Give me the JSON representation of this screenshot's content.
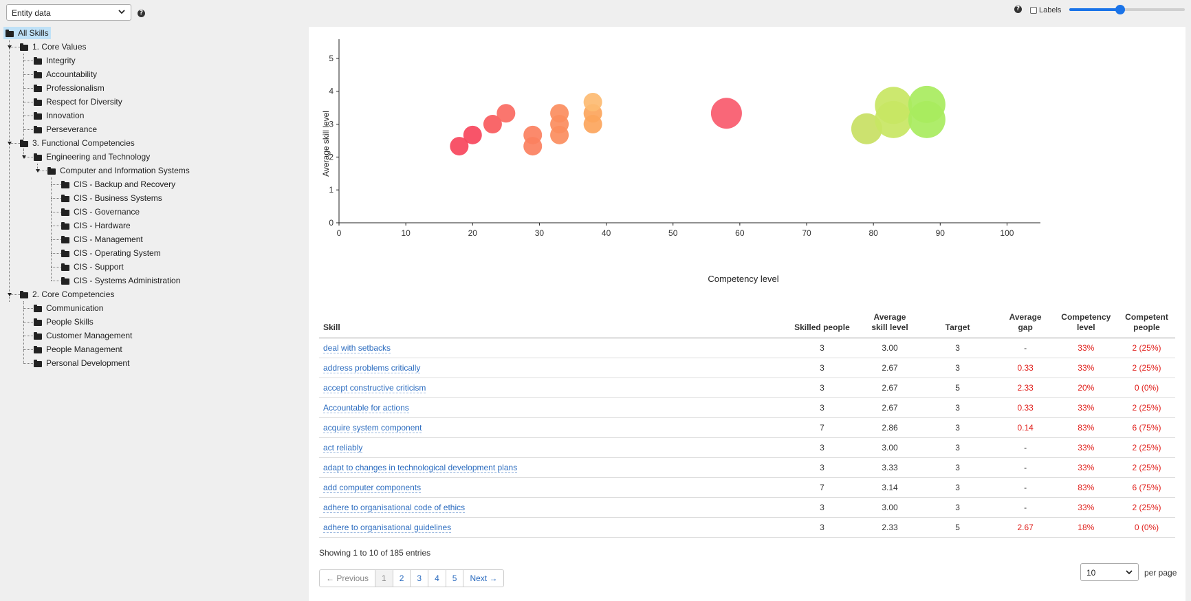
{
  "top": {
    "entity_select": "Entity data",
    "labels_toggle": "Labels",
    "slider_value_fraction": 0.44
  },
  "tree": {
    "root": "All Skills",
    "groups": [
      {
        "label": "1. Core Values",
        "items": [
          "Integrity",
          "Accountability",
          "Professionalism",
          "Respect for Diversity",
          "Innovation",
          "Perseverance"
        ]
      },
      {
        "label": "3. Functional Competencies",
        "sub": {
          "label": "Engineering and Technology",
          "sub": {
            "label": "Computer and Information Systems",
            "items": [
              "CIS - Backup and Recovery",
              "CIS - Business Systems",
              "CIS - Governance",
              "CIS - Hardware",
              "CIS - Management",
              "CIS - Operating System",
              "CIS - Support",
              "CIS - Systems Administration"
            ]
          }
        }
      },
      {
        "label": "2. Core Competencies",
        "items": [
          "Communication",
          "People Skills",
          "Customer Management",
          "People Management",
          "Personal Development"
        ]
      }
    ]
  },
  "chart_data": {
    "type": "scatter",
    "xlabel": "Competency level",
    "ylabel": "Average skill level",
    "xlim": [
      0,
      105
    ],
    "ylim": [
      0,
      5.5
    ],
    "xticks": [
      0,
      10,
      20,
      30,
      40,
      50,
      60,
      70,
      80,
      90,
      100
    ],
    "yticks": [
      0,
      1,
      2,
      3,
      4,
      5
    ],
    "points": [
      {
        "x": 18,
        "y": 2.33,
        "r": 3,
        "color": "#f7455c"
      },
      {
        "x": 20,
        "y": 2.67,
        "r": 3,
        "color": "#f7455c"
      },
      {
        "x": 23,
        "y": 3.0,
        "r": 3,
        "color": "#f85a5d"
      },
      {
        "x": 25,
        "y": 3.33,
        "r": 3,
        "color": "#fa6a62"
      },
      {
        "x": 29,
        "y": 2.33,
        "r": 3,
        "color": "#fb8060"
      },
      {
        "x": 29,
        "y": 2.67,
        "r": 3,
        "color": "#fb8060"
      },
      {
        "x": 33,
        "y": 2.67,
        "r": 3,
        "color": "#fb8d5e"
      },
      {
        "x": 33,
        "y": 3.0,
        "r": 3,
        "color": "#fb8d5e"
      },
      {
        "x": 33,
        "y": 3.33,
        "r": 3,
        "color": "#fb8d5e"
      },
      {
        "x": 38,
        "y": 3.0,
        "r": 3,
        "color": "#fca55c"
      },
      {
        "x": 38,
        "y": 3.33,
        "r": 3,
        "color": "#fca55c"
      },
      {
        "x": 38,
        "y": 3.67,
        "r": 3,
        "color": "#fdbb72"
      },
      {
        "x": 58,
        "y": 3.33,
        "r": 5,
        "color": "#f85a6d"
      },
      {
        "x": 79,
        "y": 2.86,
        "r": 5,
        "color": "#c8e063"
      },
      {
        "x": 83,
        "y": 3.14,
        "r": 6,
        "color": "#c8e663"
      },
      {
        "x": 83,
        "y": 3.57,
        "r": 6,
        "color": "#c8e663"
      },
      {
        "x": 88,
        "y": 3.14,
        "r": 6,
        "color": "#a8ec5e"
      },
      {
        "x": 88,
        "y": 3.6,
        "r": 6,
        "color": "#a8ec5e"
      }
    ]
  },
  "table": {
    "headers": [
      "Skill",
      "Skilled people",
      "Average skill level",
      "Target",
      "Average gap",
      "Competency level",
      "Competent people"
    ],
    "rows": [
      [
        "deal with setbacks",
        "3",
        "3.00",
        "3",
        "-",
        "33%",
        "2 (25%)"
      ],
      [
        "address problems critically",
        "3",
        "2.67",
        "3",
        "0.33",
        "33%",
        "2 (25%)"
      ],
      [
        "accept constructive criticism",
        "3",
        "2.67",
        "5",
        "2.33",
        "20%",
        "0 (0%)"
      ],
      [
        "Accountable for actions",
        "3",
        "2.67",
        "3",
        "0.33",
        "33%",
        "2 (25%)"
      ],
      [
        "acquire system component",
        "7",
        "2.86",
        "3",
        "0.14",
        "83%",
        "6 (75%)"
      ],
      [
        "act reliably",
        "3",
        "3.00",
        "3",
        "-",
        "33%",
        "2 (25%)"
      ],
      [
        "adapt to changes in technological development plans",
        "3",
        "3.33",
        "3",
        "-",
        "33%",
        "2 (25%)"
      ],
      [
        "add computer components",
        "7",
        "3.14",
        "3",
        "-",
        "83%",
        "6 (75%)"
      ],
      [
        "adhere to organisational code of ethics",
        "3",
        "3.00",
        "3",
        "-",
        "33%",
        "2 (25%)"
      ],
      [
        "adhere to organisational guidelines",
        "3",
        "2.33",
        "5",
        "2.67",
        "18%",
        "0 (0%)"
      ]
    ],
    "info": "Showing 1 to 10 of 185 entries"
  },
  "pager": {
    "prev": "← Previous",
    "pages": [
      "1",
      "2",
      "3",
      "4",
      "5"
    ],
    "next": "Next →",
    "active_page": "1"
  },
  "perpage": {
    "value": "10",
    "label": "per page"
  }
}
